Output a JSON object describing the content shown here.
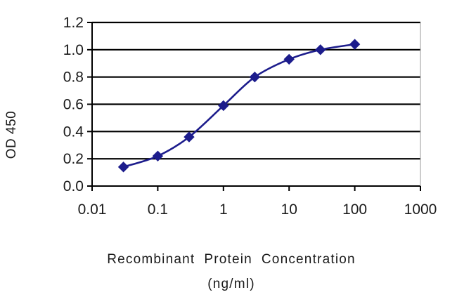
{
  "chart_data": {
    "type": "line",
    "x_scale": "log",
    "x": [
      0.03,
      0.1,
      0.3,
      1,
      3,
      10,
      30,
      100
    ],
    "series": [
      {
        "values": [
          0.14,
          0.22,
          0.36,
          0.59,
          0.8,
          0.93,
          1.0,
          1.04
        ]
      }
    ],
    "xlabel": "Recombinant  Protein  Concentration",
    "xlabel_unit": "(ng/ml)",
    "ylabel": "OD 450",
    "xlim": [
      0.01,
      1000
    ],
    "ylim": [
      0,
      1.2
    ],
    "x_ticks": [
      0.01,
      0.1,
      1,
      10,
      100,
      1000
    ],
    "x_tick_labels": [
      "0.01",
      "0.1",
      "1",
      "10",
      "100",
      "1000"
    ],
    "y_ticks": [
      0,
      0.2,
      0.4,
      0.6,
      0.8,
      1.0,
      1.2
    ],
    "y_tick_labels": [
      "0.0",
      "0.2",
      "0.4",
      "0.6",
      "0.8",
      "1.0",
      "1.2"
    ],
    "grid": "horizontal",
    "legend": "none",
    "colors": {
      "series": "#1c1c8c",
      "grid": "#000000",
      "axis": "#000000"
    }
  }
}
